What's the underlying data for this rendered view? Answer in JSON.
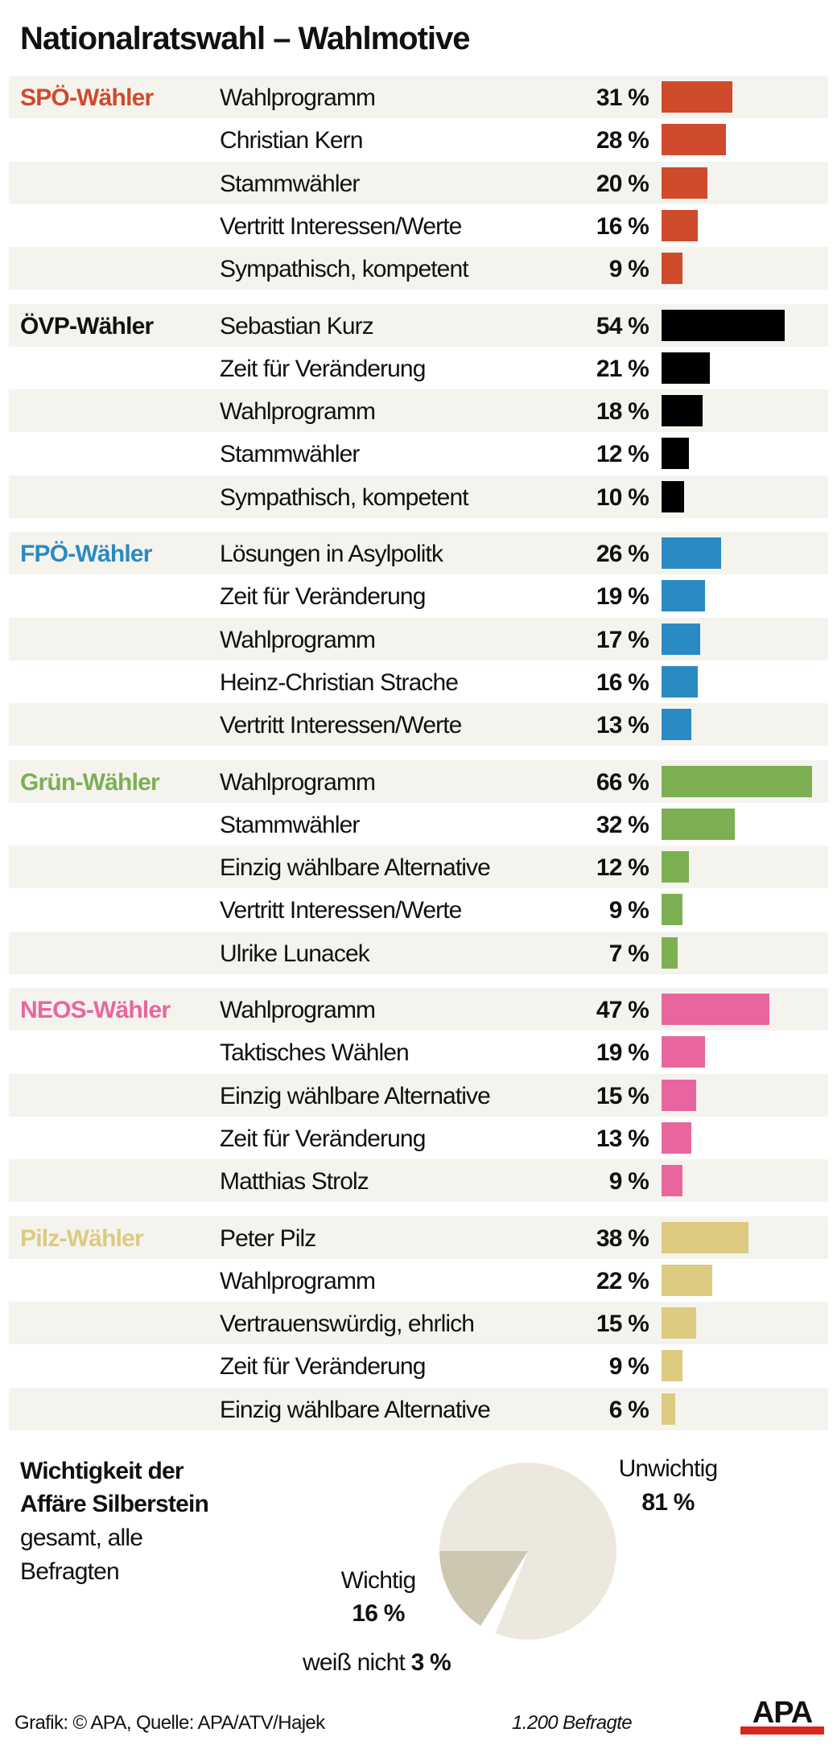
{
  "title": "Nationalratswahl – Wahlmotive",
  "chart_data": [
    {
      "type": "bar",
      "orientation": "horizontal",
      "unit": "%",
      "groups": [
        {
          "name": "SPÖ-Wähler",
          "color": "#d04a2c",
          "items": [
            {
              "label": "Wahlprogramm",
              "value": 31
            },
            {
              "label": "Christian Kern",
              "value": 28
            },
            {
              "label": "Stammwähler",
              "value": 20
            },
            {
              "label": "Vertritt Interessen/Werte",
              "value": 16
            },
            {
              "label": "Sympathisch, kompetent",
              "value": 9
            }
          ]
        },
        {
          "name": "ÖVP-Wähler",
          "color": "#000000",
          "items": [
            {
              "label": "Sebastian Kurz",
              "value": 54
            },
            {
              "label": "Zeit für Veränderung",
              "value": 21
            },
            {
              "label": "Wahlprogramm",
              "value": 18
            },
            {
              "label": "Stammwähler",
              "value": 12
            },
            {
              "label": "Sympathisch, kompetent",
              "value": 10
            }
          ]
        },
        {
          "name": "FPÖ-Wähler",
          "color": "#2a8ac4",
          "items": [
            {
              "label": "Lösungen in Asylpolitk",
              "value": 26
            },
            {
              "label": "Zeit für Veränderung",
              "value": 19
            },
            {
              "label": "Wahlprogramm",
              "value": 17
            },
            {
              "label": "Heinz-Christian Strache",
              "value": 16
            },
            {
              "label": "Vertritt Interessen/Werte",
              "value": 13
            }
          ]
        },
        {
          "name": "Grün-Wähler",
          "color": "#7cb053",
          "items": [
            {
              "label": "Wahlprogramm",
              "value": 66
            },
            {
              "label": "Stammwähler",
              "value": 32
            },
            {
              "label": "Einzig wählbare Alternative",
              "value": 12
            },
            {
              "label": "Vertritt Interessen/Werte",
              "value": 9
            },
            {
              "label": "Ulrike Lunacek",
              "value": 7
            }
          ]
        },
        {
          "name": "NEOS-Wähler",
          "color": "#e8669d",
          "items": [
            {
              "label": "Wahlprogramm",
              "value": 47
            },
            {
              "label": "Taktisches Wählen",
              "value": 19
            },
            {
              "label": "Einzig wählbare Alternative",
              "value": 15
            },
            {
              "label": "Zeit für Veränderung",
              "value": 13
            },
            {
              "label": "Matthias Strolz",
              "value": 9
            }
          ]
        },
        {
          "name": "Pilz-Wähler",
          "color": "#dccb80",
          "items": [
            {
              "label": "Peter Pilz",
              "value": 38
            },
            {
              "label": "Wahlprogramm",
              "value": 22
            },
            {
              "label": "Vertrauenswürdig, ehrlich",
              "value": 15
            },
            {
              "label": "Zeit für Veränderung",
              "value": 9
            },
            {
              "label": "Einzig wählbare Alternative",
              "value": 6
            }
          ]
        }
      ]
    },
    {
      "type": "pie",
      "title_lines": [
        "Wichtigkeit der",
        "Affäre Silberstein"
      ],
      "subtitle_lines": [
        "gesamt, alle",
        "Befragten"
      ],
      "slices": [
        {
          "name": "Unwichtig",
          "value": 81,
          "value_label": "81 %",
          "color": "#ede8de"
        },
        {
          "name": "Wichtig",
          "value": 16,
          "value_label": "16 %",
          "color": "#cdc6b0"
        },
        {
          "name": "weiß nicht",
          "value": 3,
          "value_label": "3 %",
          "color": "#ffffff"
        }
      ]
    }
  ],
  "footer": {
    "credit": "Grafik: © APA, Quelle: APA/ATV/Hajek",
    "sample": "1.200 Befragte",
    "logo": "APA",
    "logo_color": "#d9261c"
  }
}
